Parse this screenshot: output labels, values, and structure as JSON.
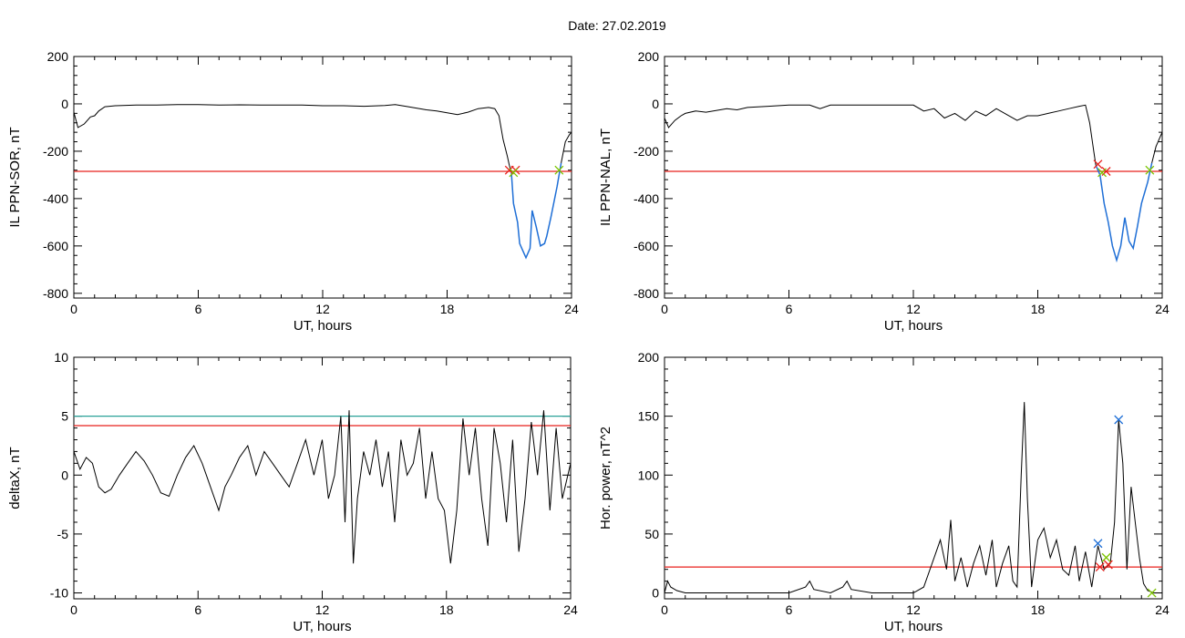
{
  "figure_title": "Date:  27.02.2019",
  "colors": {
    "axes": "#000000",
    "data_line": "#000000",
    "threshold_red": "#e8201c",
    "threshold_teal": "#2aa198",
    "substorm_segment": "#1f6fd6",
    "marker_red": "#e8201c",
    "marker_green": "#7cc400",
    "marker_blue": "#1f6fd6"
  },
  "chart_data": [
    {
      "id": "top-left",
      "type": "line",
      "title": "",
      "xlabel": "UT, hours",
      "ylabel": "IL PPN-SOR, nT",
      "xlim": [
        0,
        24
      ],
      "ylim": [
        -820,
        200
      ],
      "xticks": [
        0,
        6,
        12,
        18,
        24
      ],
      "yticks": [
        -800,
        -600,
        -400,
        -200,
        0,
        200
      ],
      "grid": false,
      "series": [
        {
          "x": [
            0,
            0.2,
            0.5,
            0.8,
            1.0,
            1.2,
            1.5,
            2,
            3,
            4,
            5,
            6,
            7,
            8,
            9,
            10,
            11,
            12,
            13,
            14,
            15,
            15.5,
            16,
            17,
            17.5,
            18,
            18.5,
            19,
            19.5,
            20,
            20.3,
            20.5,
            20.7,
            20.9,
            21.0,
            21.1
          ],
          "y": [
            -35,
            -100,
            -85,
            -55,
            -50,
            -30,
            -12,
            -8,
            -5,
            -5,
            -3,
            -3,
            -5,
            -4,
            -5,
            -5,
            -5,
            -8,
            -8,
            -10,
            -7,
            -3,
            -10,
            -25,
            -30,
            -38,
            -45,
            -35,
            -20,
            -15,
            -20,
            -50,
            -150,
            -220,
            -260,
            -290
          ]
        },
        {
          "x": [
            21.1,
            21.2,
            21.4,
            21.5,
            21.6,
            21.8,
            22.0,
            22.1,
            22.3,
            22.5,
            22.7,
            22.8,
            23.0,
            23.3,
            23.5
          ],
          "y": [
            -290,
            -420,
            -500,
            -590,
            -610,
            -650,
            -610,
            -450,
            -520,
            -600,
            -590,
            -560,
            -480,
            -350,
            -250
          ]
        },
        {
          "x": [
            23.5,
            23.7,
            23.9,
            24
          ],
          "y": [
            -250,
            -160,
            -130,
            -120
          ]
        }
      ],
      "thresholds": [
        {
          "y": -285,
          "color": "red"
        }
      ],
      "markers": [
        {
          "x": 21.0,
          "y": -280,
          "color": "red"
        },
        {
          "x": 21.3,
          "y": -280,
          "color": "red"
        },
        {
          "x": 21.2,
          "y": -290,
          "color": "green"
        },
        {
          "x": 23.4,
          "y": -280,
          "color": "green"
        }
      ]
    },
    {
      "id": "top-right",
      "type": "line",
      "title": "",
      "xlabel": "UT, hours",
      "ylabel": "IL PPN-NAL, nT",
      "xlim": [
        0,
        24
      ],
      "ylim": [
        -820,
        200
      ],
      "xticks": [
        0,
        6,
        12,
        18,
        24
      ],
      "yticks": [
        -800,
        -600,
        -400,
        -200,
        0,
        200
      ],
      "grid": false,
      "series": [
        {
          "x": [
            0,
            0.2,
            0.5,
            0.8,
            1,
            1.5,
            2,
            3,
            3.5,
            4,
            5,
            6,
            7,
            7.5,
            8,
            9,
            10,
            11,
            12,
            12.5,
            13,
            13.5,
            14,
            14.5,
            15,
            15.5,
            16,
            17,
            17.5,
            18,
            18.5,
            19,
            19.5,
            20,
            20.3,
            20.5,
            20.7,
            20.8
          ],
          "y": [
            -60,
            -100,
            -70,
            -50,
            -40,
            -30,
            -35,
            -20,
            -25,
            -15,
            -10,
            -5,
            -5,
            -20,
            -5,
            -5,
            -5,
            -5,
            -5,
            -30,
            -20,
            -60,
            -40,
            -70,
            -30,
            -50,
            -20,
            -70,
            -50,
            -50,
            -40,
            -30,
            -20,
            -10,
            -5,
            -80,
            -200,
            -260
          ]
        },
        {
          "x": [
            20.8,
            21.0,
            21.2,
            21.4,
            21.6,
            21.8,
            22.0,
            22.2,
            22.4,
            22.6,
            22.8,
            23.0,
            23.3,
            23.5
          ],
          "y": [
            -260,
            -300,
            -420,
            -500,
            -600,
            -660,
            -600,
            -480,
            -580,
            -610,
            -520,
            -420,
            -330,
            -250
          ]
        },
        {
          "x": [
            23.5,
            23.7,
            23.9,
            24
          ],
          "y": [
            -250,
            -180,
            -140,
            -120
          ]
        }
      ],
      "thresholds": [
        {
          "y": -285,
          "color": "red"
        }
      ],
      "markers": [
        {
          "x": 20.9,
          "y": -255,
          "color": "red"
        },
        {
          "x": 21.3,
          "y": -285,
          "color": "red"
        },
        {
          "x": 21.1,
          "y": -290,
          "color": "green"
        },
        {
          "x": 23.4,
          "y": -280,
          "color": "green"
        }
      ]
    },
    {
      "id": "bottom-left",
      "type": "line",
      "title": "",
      "xlabel": "UT, hours",
      "ylabel": "deltaX, nT",
      "xlim": [
        0,
        24
      ],
      "ylim": [
        -10.5,
        10
      ],
      "xticks": [
        0,
        6,
        12,
        18,
        24
      ],
      "yticks": [
        -10,
        -5,
        0,
        5,
        10
      ],
      "grid": false,
      "series": [
        {
          "x": [
            0,
            0.3,
            0.6,
            0.9,
            1.2,
            1.5,
            1.8,
            2.2,
            2.6,
            3.0,
            3.4,
            3.8,
            4.2,
            4.6,
            5.0,
            5.4,
            5.8,
            6.2,
            6.6,
            7.0,
            7.3,
            7.6,
            8.0,
            8.4,
            8.8,
            9.2,
            9.6,
            10.0,
            10.4,
            10.8,
            11.2,
            11.6,
            12.0,
            12.3,
            12.6,
            12.9,
            13.1,
            13.3,
            13.5,
            13.7,
            14.0,
            14.3,
            14.6,
            14.9,
            15.2,
            15.5,
            15.8,
            16.1,
            16.4,
            16.7,
            17.0,
            17.3,
            17.6,
            17.9,
            18.2,
            18.5,
            18.8,
            19.1,
            19.4,
            19.7,
            20.0,
            20.3,
            20.6,
            20.9,
            21.2,
            21.5,
            21.8,
            22.1,
            22.4,
            22.7,
            23.0,
            23.3,
            23.6,
            24
          ],
          "y": [
            2,
            0.5,
            1.5,
            1,
            -1,
            -1.5,
            -1.2,
            0,
            1,
            2,
            1.2,
            0,
            -1.5,
            -1.8,
            0,
            1.5,
            2.5,
            1,
            -1,
            -3,
            -1,
            0,
            1.5,
            2.5,
            0,
            2,
            1,
            0,
            -1,
            1,
            3,
            0,
            3,
            -2,
            0,
            5,
            -4,
            5.5,
            -7.5,
            -2,
            2,
            0,
            3,
            -1,
            2,
            -4,
            3,
            0,
            1,
            4,
            -2,
            2,
            -2,
            -3,
            -7.5,
            -3,
            4.8,
            0,
            4,
            -2,
            -6,
            4,
            1,
            -4,
            3,
            -6.5,
            -2,
            4.5,
            0,
            5.5,
            -3,
            4,
            -2,
            1
          ]
        }
      ],
      "thresholds": [
        {
          "y": 5.0,
          "color": "teal"
        },
        {
          "y": 4.2,
          "color": "red"
        }
      ],
      "markers": []
    },
    {
      "id": "bottom-right",
      "type": "line",
      "title": "",
      "xlabel": "UT, hours",
      "ylabel": "Hor. power, nT^2",
      "xlim": [
        0,
        24
      ],
      "ylim": [
        -5,
        200
      ],
      "xticks": [
        0,
        6,
        12,
        18,
        24
      ],
      "yticks": [
        0,
        50,
        100,
        150,
        200
      ],
      "grid": false,
      "series": [
        {
          "x": [
            0,
            0.15,
            0.3,
            0.6,
            1,
            2,
            3,
            4,
            5,
            6,
            6.8,
            7.0,
            7.2,
            8,
            8.6,
            8.8,
            9,
            10,
            11,
            12,
            12.5,
            13.0,
            13.3,
            13.6,
            13.8,
            14.0,
            14.3,
            14.6,
            14.9,
            15.2,
            15.5,
            15.8,
            16.0,
            16.3,
            16.6,
            16.8,
            17.0,
            17.2,
            17.35,
            17.5,
            17.7,
            18.0,
            18.3,
            18.6,
            18.9,
            19.2,
            19.5,
            19.8,
            20.0,
            20.3,
            20.6,
            20.9,
            21.2,
            21.5,
            21.7,
            21.9,
            22.1,
            22.3,
            22.5,
            22.7,
            22.9,
            23.1,
            23.3,
            23.6,
            24
          ],
          "y": [
            0,
            10,
            5,
            2,
            0,
            0,
            0,
            0,
            0,
            0,
            5,
            10,
            3,
            0,
            5,
            10,
            3,
            0,
            0,
            0,
            5,
            30,
            45,
            20,
            62,
            10,
            30,
            5,
            25,
            40,
            15,
            45,
            5,
            25,
            40,
            10,
            5,
            100,
            162,
            80,
            5,
            45,
            55,
            30,
            45,
            20,
            15,
            40,
            10,
            35,
            5,
            40,
            20,
            25,
            60,
            147,
            110,
            20,
            90,
            60,
            30,
            8,
            2,
            0,
            0
          ]
        }
      ],
      "thresholds": [
        {
          "y": 22,
          "color": "red"
        }
      ],
      "markers": [
        {
          "x": 20.9,
          "y": 42,
          "color": "blue"
        },
        {
          "x": 21.9,
          "y": 147,
          "color": "blue"
        },
        {
          "x": 21.0,
          "y": 22,
          "color": "red"
        },
        {
          "x": 21.4,
          "y": 24,
          "color": "red"
        },
        {
          "x": 21.3,
          "y": 30,
          "color": "green"
        },
        {
          "x": 23.5,
          "y": 0,
          "color": "green"
        }
      ]
    }
  ]
}
